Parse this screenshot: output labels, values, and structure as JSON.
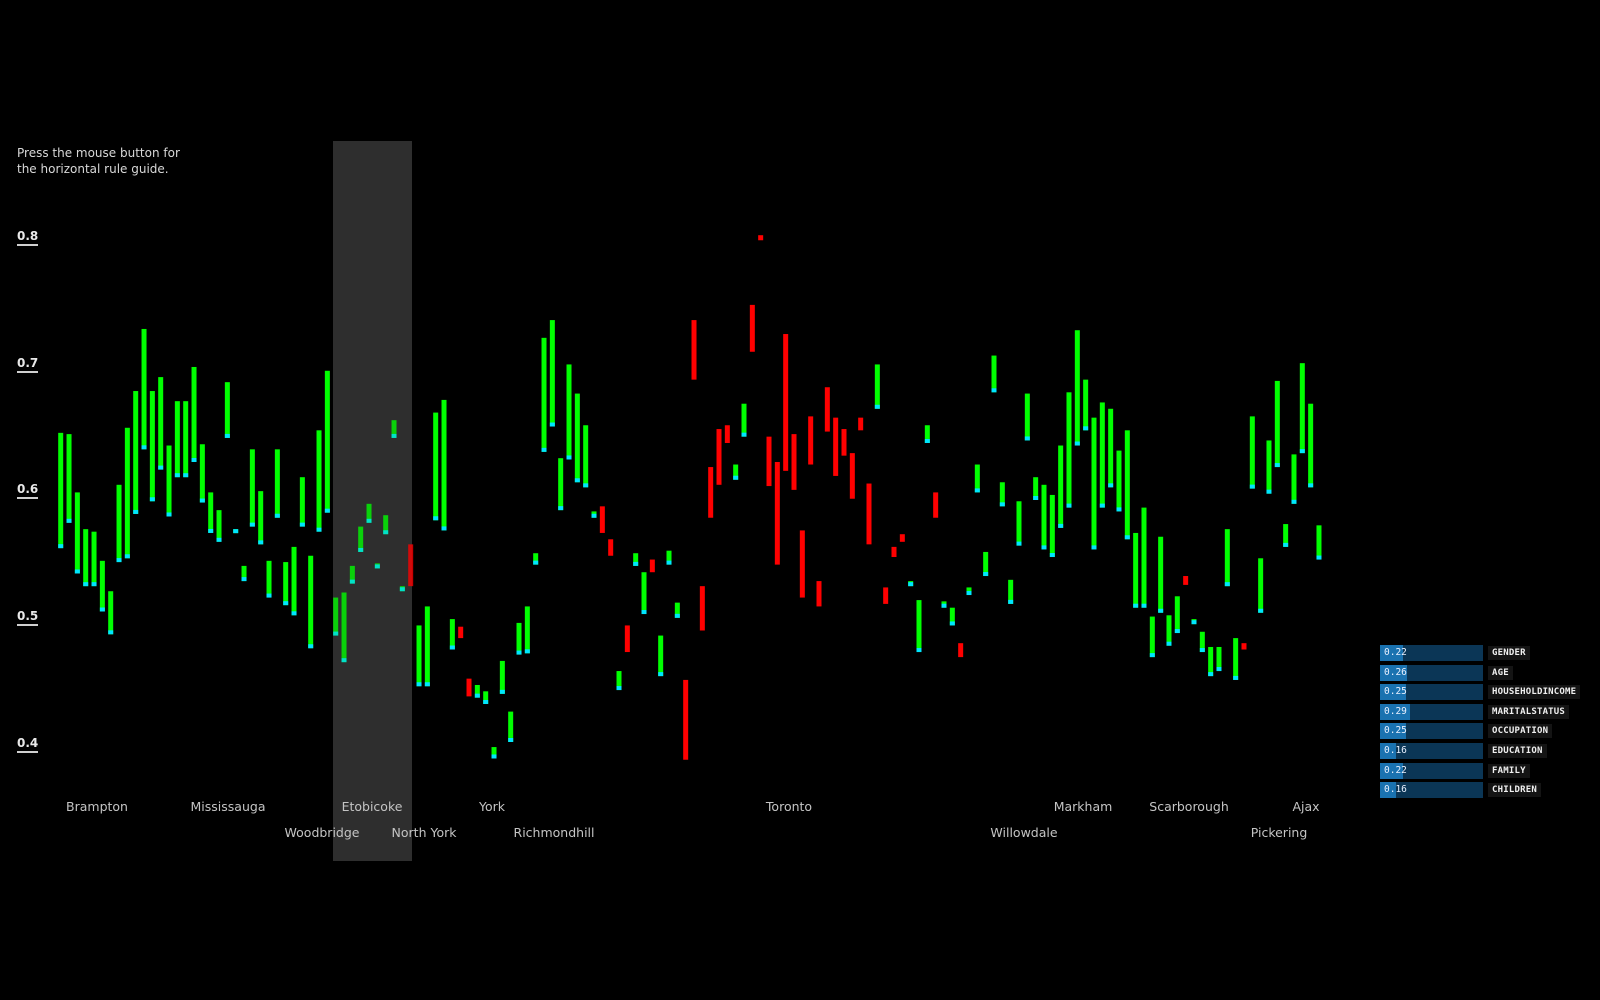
{
  "hint": [
    "Press the mouse button for",
    "the horizontal rule guide."
  ],
  "colors": {
    "g": "#00ff00",
    "r": "#ff0000",
    "tip": "#00e5ff",
    "highlight": "#2e2e2e"
  },
  "chart_data": {
    "type": "bar",
    "subtype": "floating-range",
    "ylim": [
      0.37,
      0.82
    ],
    "yticks": [
      "0.8",
      "0.7",
      "0.6",
      "0.5",
      "0.4"
    ],
    "grid": false,
    "bars": [
      [
        0.556,
        0.647,
        "g"
      ],
      [
        0.576,
        0.646,
        "g"
      ],
      [
        0.536,
        0.6,
        "g"
      ],
      [
        0.526,
        0.571,
        "g"
      ],
      [
        0.526,
        0.569,
        "g"
      ],
      [
        0.506,
        0.546,
        "g"
      ],
      [
        0.488,
        0.522,
        "g"
      ],
      [
        0.545,
        0.606,
        "g"
      ],
      [
        0.548,
        0.651,
        "g"
      ],
      [
        0.583,
        0.68,
        "g"
      ],
      [
        0.634,
        0.729,
        "g"
      ],
      [
        0.593,
        0.68,
        "g"
      ],
      [
        0.618,
        0.691,
        "g"
      ],
      [
        0.581,
        0.637,
        "g"
      ],
      [
        0.612,
        0.672,
        "g"
      ],
      [
        0.612,
        0.672,
        "g"
      ],
      [
        0.624,
        0.699,
        "g"
      ],
      [
        0.592,
        0.638,
        "g"
      ],
      [
        0.568,
        0.6,
        "g"
      ],
      [
        0.561,
        0.586,
        "g"
      ],
      [
        0.643,
        0.687,
        "g"
      ],
      [
        0.568,
        0.571,
        "g"
      ],
      [
        0.53,
        0.542,
        "g"
      ],
      [
        0.573,
        0.634,
        "g"
      ],
      [
        0.559,
        0.601,
        "g"
      ],
      [
        0.517,
        0.546,
        "g"
      ],
      [
        0.58,
        0.634,
        "g"
      ],
      [
        0.511,
        0.545,
        "g"
      ],
      [
        0.503,
        0.557,
        "g"
      ],
      [
        0.573,
        0.612,
        "g"
      ],
      [
        0.477,
        0.55,
        "g"
      ],
      [
        0.569,
        0.649,
        "g"
      ],
      [
        0.584,
        0.696,
        "g"
      ],
      [
        0.487,
        0.517,
        "g"
      ],
      [
        0.466,
        0.521,
        "g"
      ],
      [
        0.528,
        0.542,
        "g"
      ],
      [
        0.553,
        0.573,
        "g"
      ],
      [
        0.576,
        0.591,
        "g"
      ],
      [
        0.54,
        0.544,
        "g"
      ],
      [
        0.567,
        0.582,
        "g"
      ],
      [
        0.643,
        0.657,
        "g"
      ],
      [
        0.522,
        0.526,
        "g"
      ],
      [
        0.526,
        0.559,
        "r"
      ],
      [
        0.447,
        0.495,
        "g"
      ],
      [
        0.447,
        0.51,
        "g"
      ],
      [
        0.578,
        0.663,
        "g"
      ],
      [
        0.57,
        0.673,
        "g"
      ],
      [
        0.476,
        0.5,
        "g"
      ],
      [
        0.485,
        0.494,
        "r"
      ],
      [
        0.439,
        0.453,
        "r"
      ],
      [
        0.438,
        0.448,
        "g"
      ],
      [
        0.433,
        0.443,
        "g"
      ],
      [
        0.39,
        0.399,
        "g"
      ],
      [
        0.441,
        0.467,
        "g"
      ],
      [
        0.403,
        0.427,
        "g"
      ],
      [
        0.472,
        0.497,
        "g"
      ],
      [
        0.473,
        0.51,
        "g"
      ],
      [
        0.543,
        0.552,
        "g"
      ],
      [
        0.632,
        0.722,
        "g"
      ],
      [
        0.652,
        0.736,
        "g"
      ],
      [
        0.586,
        0.627,
        "g"
      ],
      [
        0.626,
        0.701,
        "g"
      ],
      [
        0.608,
        0.678,
        "g"
      ],
      [
        0.604,
        0.653,
        "g"
      ],
      [
        0.58,
        0.585,
        "g"
      ],
      [
        0.568,
        0.589,
        "r"
      ],
      [
        0.55,
        0.563,
        "r"
      ],
      [
        0.444,
        0.459,
        "g"
      ],
      [
        0.474,
        0.495,
        "r"
      ],
      [
        0.542,
        0.552,
        "g"
      ],
      [
        0.504,
        0.537,
        "g"
      ],
      [
        0.537,
        0.547,
        "r"
      ],
      [
        0.455,
        0.487,
        "g"
      ],
      [
        0.543,
        0.554,
        "g"
      ],
      [
        0.501,
        0.513,
        "g"
      ],
      [
        0.389,
        0.452,
        "r"
      ],
      [
        0.689,
        0.736,
        "r"
      ],
      [
        0.491,
        0.526,
        "r"
      ],
      [
        0.58,
        0.62,
        "r"
      ],
      [
        0.606,
        0.65,
        "r"
      ],
      [
        0.639,
        0.653,
        "r"
      ],
      [
        0.61,
        0.622,
        "g"
      ],
      [
        0.644,
        0.67,
        "g"
      ],
      [
        0.711,
        0.748,
        "r"
      ],
      [
        0.799,
        0.803,
        "r"
      ],
      [
        0.605,
        0.644,
        "r"
      ],
      [
        0.543,
        0.624,
        "r"
      ],
      [
        0.617,
        0.725,
        "r"
      ],
      [
        0.602,
        0.646,
        "r"
      ],
      [
        0.517,
        0.57,
        "r"
      ],
      [
        0.622,
        0.66,
        "r"
      ],
      [
        0.51,
        0.53,
        "r"
      ],
      [
        0.648,
        0.683,
        "r"
      ],
      [
        0.613,
        0.659,
        "r"
      ],
      [
        0.629,
        0.65,
        "r"
      ],
      [
        0.595,
        0.631,
        "r"
      ],
      [
        0.649,
        0.659,
        "r"
      ],
      [
        0.559,
        0.607,
        "r"
      ],
      [
        0.666,
        0.701,
        "g"
      ],
      [
        0.512,
        0.525,
        "r"
      ],
      [
        0.549,
        0.557,
        "r"
      ],
      [
        0.561,
        0.567,
        "r"
      ],
      [
        0.526,
        0.53,
        "g"
      ],
      [
        0.474,
        0.515,
        "g"
      ],
      [
        0.639,
        0.653,
        "g"
      ],
      [
        0.58,
        0.6,
        "r"
      ],
      [
        0.509,
        0.514,
        "g"
      ],
      [
        0.495,
        0.509,
        "g"
      ],
      [
        0.47,
        0.481,
        "r"
      ],
      [
        0.519,
        0.525,
        "g"
      ],
      [
        0.6,
        0.622,
        "g"
      ],
      [
        0.534,
        0.553,
        "g"
      ],
      [
        0.679,
        0.708,
        "g"
      ],
      [
        0.589,
        0.608,
        "g"
      ],
      [
        0.512,
        0.531,
        "g"
      ],
      [
        0.558,
        0.593,
        "g"
      ],
      [
        0.641,
        0.678,
        "g"
      ],
      [
        0.594,
        0.612,
        "g"
      ],
      [
        0.555,
        0.606,
        "g"
      ],
      [
        0.549,
        0.598,
        "g"
      ],
      [
        0.572,
        0.637,
        "g"
      ],
      [
        0.588,
        0.679,
        "g"
      ],
      [
        0.637,
        0.728,
        "g"
      ],
      [
        0.649,
        0.689,
        "g"
      ],
      [
        0.555,
        0.659,
        "g"
      ],
      [
        0.588,
        0.671,
        "g"
      ],
      [
        0.604,
        0.666,
        "g"
      ],
      [
        0.585,
        0.633,
        "g"
      ],
      [
        0.563,
        0.649,
        "g"
      ],
      [
        0.509,
        0.568,
        "g"
      ],
      [
        0.509,
        0.588,
        "g"
      ],
      [
        0.47,
        0.502,
        "g"
      ],
      [
        0.505,
        0.565,
        "g"
      ],
      [
        0.479,
        0.503,
        "g"
      ],
      [
        0.489,
        0.518,
        "g"
      ],
      [
        0.527,
        0.534,
        "r"
      ],
      [
        0.496,
        0.5,
        "g"
      ],
      [
        0.474,
        0.49,
        "g"
      ],
      [
        0.455,
        0.478,
        "g"
      ],
      [
        0.459,
        0.478,
        "g"
      ],
      [
        0.526,
        0.571,
        "g"
      ],
      [
        0.452,
        0.485,
        "g"
      ],
      [
        0.476,
        0.481,
        "r"
      ],
      [
        0.603,
        0.66,
        "g"
      ],
      [
        0.505,
        0.548,
        "g"
      ],
      [
        0.599,
        0.641,
        "g"
      ],
      [
        0.62,
        0.688,
        "g"
      ],
      [
        0.557,
        0.575,
        "g"
      ],
      [
        0.591,
        0.63,
        "g"
      ],
      [
        0.631,
        0.702,
        "g"
      ],
      [
        0.604,
        0.67,
        "g"
      ],
      [
        0.547,
        0.574,
        "g"
      ]
    ],
    "cities_row1": [
      "Brampton",
      "Mississauga",
      "Etobicoke",
      "York",
      "Toronto",
      "Markham",
      "Scarborough",
      "Ajax"
    ],
    "cities_row2": [
      "Woodbridge",
      "North York",
      "Richmondhill",
      "Willowdale",
      "Pickering"
    ]
  },
  "legend": [
    {
      "value": "0.22",
      "label": "GENDER"
    },
    {
      "value": "0.26",
      "label": "AGE"
    },
    {
      "value": "0.25",
      "label": "HOUSEHOLDINCOME"
    },
    {
      "value": "0.29",
      "label": "MARITALSTATUS"
    },
    {
      "value": "0.25",
      "label": "OCCUPATION"
    },
    {
      "value": "0.16",
      "label": "EDUCATION"
    },
    {
      "value": "0.22",
      "label": "FAMILY"
    },
    {
      "value": "0.16",
      "label": "CHILDREN"
    }
  ]
}
